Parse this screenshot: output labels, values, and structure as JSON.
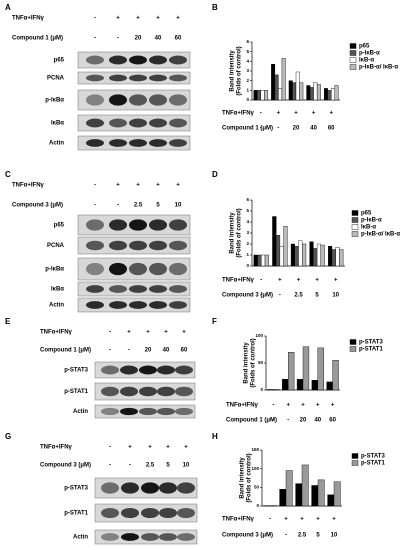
{
  "blots": [
    {
      "letter": "A",
      "treatments": [
        {
          "label": "TNFα+IFNγ",
          "cells": [
            "-",
            "+",
            "+",
            "+",
            "+"
          ]
        },
        {
          "label": "Compound 1  (μM)",
          "cells": [
            "-",
            "-",
            "20",
            "40",
            "60"
          ]
        }
      ],
      "bands": [
        "p65",
        "PCNA",
        "p-IκBα",
        "IκBα",
        "Actin"
      ]
    },
    {
      "letter": "C",
      "treatments": [
        {
          "label": "TNFα+IFNγ",
          "cells": [
            "-",
            "+",
            "+",
            "+",
            "+"
          ]
        },
        {
          "label": "Compound 3  (μM)",
          "cells": [
            "-",
            "-",
            "2.5",
            "5",
            "10"
          ]
        }
      ],
      "bands": [
        "p65",
        "PCNA",
        "p-IκBα",
        "IκBα",
        "Actin"
      ]
    },
    {
      "letter": "E",
      "treatments": [
        {
          "label": "TNFα+IFNγ",
          "cells": [
            "-",
            "+",
            "+",
            "+",
            "+"
          ]
        },
        {
          "label": "Compound 1  (μM)",
          "cells": [
            "-",
            "-",
            "20",
            "40",
            "60"
          ]
        }
      ],
      "bands": [
        "p-STAT3",
        "p-STAT1",
        "Actin"
      ]
    },
    {
      "letter": "G",
      "treatments": [
        {
          "label": "TNFα+IFNγ",
          "cells": [
            "-",
            "+",
            "+",
            "+",
            "+"
          ]
        },
        {
          "label": "Compound 3  (μM)",
          "cells": [
            "-",
            "-",
            "2.5",
            "5",
            "10"
          ]
        }
      ],
      "bands": [
        "p-STAT3",
        "p-STAT1",
        "Actin"
      ]
    }
  ],
  "chart_data": [
    {
      "type": "bar",
      "letter": "B",
      "ylabel": [
        "Band intensity",
        "(Folds of control)"
      ],
      "ylim": [
        0,
        6
      ],
      "yticks": [
        0,
        1,
        2,
        3,
        4,
        5,
        6
      ],
      "treatments": [
        {
          "label": "TNFα+IFNγ",
          "cells": [
            "-",
            "+",
            "+",
            "+",
            "+"
          ]
        },
        {
          "label": "Compound 1  (μM)",
          "cells": [
            "-",
            "-",
            "20",
            "40",
            "60"
          ]
        }
      ],
      "series": [
        {
          "name": "p65",
          "color": "#000000",
          "values": [
            1,
            3.7,
            2.0,
            1.5,
            1.2
          ]
        },
        {
          "name": "p-IκB-α",
          "color": "#555555",
          "values": [
            1,
            2.6,
            1.8,
            1.3,
            1.0
          ]
        },
        {
          "name": "IκB-α",
          "color": "#ffffff",
          "values": [
            1,
            1.2,
            2.9,
            1.8,
            1.2
          ]
        },
        {
          "name": "p-IκB-α/ IκB-α",
          "color": "#bbbbbb",
          "values": [
            1,
            4.3,
            1.8,
            1.6,
            1.5
          ]
        }
      ]
    },
    {
      "type": "bar",
      "letter": "D",
      "ylabel": [
        "Band intensity",
        "(Folds of control)"
      ],
      "ylim": [
        0,
        6
      ],
      "yticks": [
        0,
        1,
        2,
        3,
        4,
        5,
        6
      ],
      "treatments": [
        {
          "label": "TNFα+IFNγ",
          "cells": [
            "-",
            "+",
            "+",
            "+",
            "+"
          ]
        },
        {
          "label": "Compound 3  (μM)",
          "cells": [
            "-",
            "-",
            "2.5",
            "5",
            "10"
          ]
        }
      ],
      "series": [
        {
          "name": "p65",
          "color": "#000000",
          "values": [
            1,
            4.5,
            2.0,
            2.2,
            1.8
          ]
        },
        {
          "name": "p-IκB-α",
          "color": "#555555",
          "values": [
            1,
            2.8,
            1.8,
            1.6,
            1.5
          ]
        },
        {
          "name": "IκB-α",
          "color": "#ffffff",
          "values": [
            1,
            1.8,
            2.3,
            2.0,
            1.7
          ]
        },
        {
          "name": "p-IκB-α/ IκB-α",
          "color": "#bbbbbb",
          "values": [
            1,
            3.6,
            2.0,
            1.9,
            1.5
          ]
        }
      ]
    },
    {
      "type": "bar",
      "letter": "F",
      "ylabel": [
        "Band intensity",
        "(Folds of control)"
      ],
      "ylim": [
        0,
        100
      ],
      "yticks": [
        0,
        50,
        100
      ],
      "treatments": [
        {
          "label": "TNFα+IFNγ",
          "cells": [
            "-",
            "+",
            "+",
            "+",
            "+"
          ]
        },
        {
          "label": "Compound 1  (μM)",
          "cells": [
            "-",
            "-",
            "20",
            "40",
            "60"
          ]
        }
      ],
      "series": [
        {
          "name": "p-STAT3",
          "color": "#000000",
          "values": [
            1,
            20,
            20,
            18,
            15
          ]
        },
        {
          "name": "p-STAT1",
          "color": "#999999",
          "values": [
            1,
            70,
            80,
            78,
            55
          ]
        }
      ]
    },
    {
      "type": "bar",
      "letter": "H",
      "ylabel": [
        "Band intensity",
        "(Folds of control)"
      ],
      "ylim": [
        0,
        150
      ],
      "yticks": [
        0,
        50,
        100,
        150
      ],
      "treatments": [
        {
          "label": "TNFα+IFNγ",
          "cells": [
            "-",
            "+",
            "+",
            "+",
            "+"
          ]
        },
        {
          "label": "Compound 3  (μM)",
          "cells": [
            "-",
            "-",
            "2.5",
            "5",
            "10"
          ]
        }
      ],
      "series": [
        {
          "name": "p-STAT3",
          "color": "#000000",
          "values": [
            1,
            45,
            60,
            55,
            30
          ]
        },
        {
          "name": "p-STAT1",
          "color": "#999999",
          "values": [
            1,
            95,
            110,
            70,
            65
          ]
        }
      ]
    }
  ]
}
